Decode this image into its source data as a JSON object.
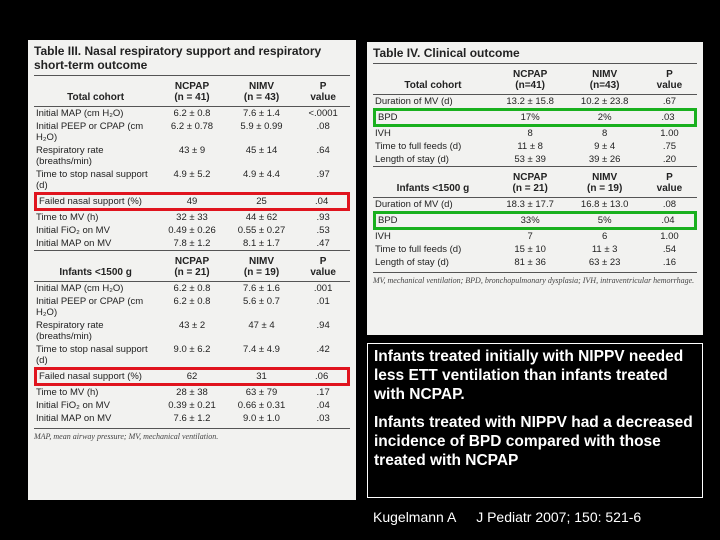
{
  "table3": {
    "title": "Table III. Nasal respiratory support and respiratory short-term outcome",
    "sections": [
      {
        "header": [
          [
            "Total cohort"
          ],
          [
            "NCPAP",
            "(n = 41)"
          ],
          [
            "NIMV",
            "(n = 43)"
          ],
          [
            "P",
            "value"
          ]
        ],
        "rows": [
          [
            "Initial MAP (cm H₂O)",
            "6.2 ± 0.8",
            "7.6 ± 1.4",
            "<.0001"
          ],
          [
            "Initial PEEP or CPAP (cm H₂O)",
            "6.2 ± 0.78",
            "5.9 ± 0.99",
            ".08"
          ],
          [
            "Respiratory rate (breaths/min)",
            "43 ± 9",
            "45 ± 14",
            ".64"
          ],
          [
            "Time to stop nasal support (d)",
            "4.9 ± 5.2",
            "4.9 ± 4.4",
            ".97"
          ],
          [
            "Failed nasal support (%)",
            "49",
            "25",
            ".04"
          ],
          [
            "Time to MV (h)",
            "32 ± 33",
            "44 ± 62",
            ".93"
          ],
          [
            "Initial FiO₂ on MV",
            "0.49 ± 0.26",
            "0.55 ± 0.27",
            ".53"
          ],
          [
            "Initial MAP on MV",
            "7.8 ± 1.2",
            "8.1 ± 1.7",
            ".47"
          ]
        ]
      },
      {
        "header": [
          [
            "Infants <1500 g"
          ],
          [
            "NCPAP",
            "(n = 21)"
          ],
          [
            "NIMV",
            "(n = 19)"
          ],
          [
            "P",
            "value"
          ]
        ],
        "rows": [
          [
            "Initial MAP (cm H₂O)",
            "6.2 ± 0.8",
            "7.6 ± 1.6",
            ".001"
          ],
          [
            "Initial PEEP or CPAP (cm H₂O)",
            "6.2 ± 0.8",
            "5.6 ± 0.7",
            ".01"
          ],
          [
            "Respiratory rate (breaths/min)",
            "43 ± 2",
            "47 ± 4",
            ".94"
          ],
          [
            "Time to stop nasal support (d)",
            "9.0 ± 6.2",
            "7.4 ± 4.9",
            ".42"
          ],
          [
            "Failed nasal support (%)",
            "62",
            "31",
            ".06"
          ],
          [
            "Time to MV (h)",
            "28 ± 38",
            "63 ± 79",
            ".17"
          ],
          [
            "Initial FiO₂ on MV",
            "0.39 ± 0.21",
            "0.66 ± 0.31",
            ".04"
          ],
          [
            "Initial MAP on MV",
            "7.6 ± 1.2",
            "9.0 ± 1.0",
            ".03"
          ]
        ]
      }
    ],
    "footnote": "MAP, mean airway pressure; MV, mechanical ventilation."
  },
  "table4": {
    "title": "Table IV. Clinical outcome",
    "sections": [
      {
        "header": [
          [
            "Total cohort"
          ],
          [
            "NCPAP",
            "(n=41)"
          ],
          [
            "NIMV",
            "(n=43)"
          ],
          [
            "P",
            "value"
          ]
        ],
        "rows": [
          [
            "Duration of MV (d)",
            "13.2 ± 15.8",
            "10.2 ± 23.8",
            ".67"
          ],
          [
            "BPD",
            "17%",
            "2%",
            ".03"
          ],
          [
            "IVH",
            "8",
            "8",
            "1.00"
          ],
          [
            "Time to full feeds (d)",
            "11 ± 8",
            "9 ± 4",
            ".75"
          ],
          [
            "Length of stay (d)",
            "53 ± 39",
            "39 ± 26",
            ".20"
          ]
        ]
      },
      {
        "header": [
          [
            "Infants <1500 g"
          ],
          [
            "NCPAP",
            "(n = 21)"
          ],
          [
            "NIMV",
            "(n = 19)"
          ],
          [
            "P",
            "value"
          ]
        ],
        "rows": [
          [
            "Duration of MV (d)",
            "18.3 ± 17.7",
            "16.8 ± 13.0",
            ".08"
          ],
          [
            "BPD",
            "33%",
            "5%",
            ".04"
          ],
          [
            "IVH",
            "7",
            "6",
            "1.00"
          ],
          [
            "Time to full feeds (d)",
            "15 ± 10",
            "11 ± 3",
            ".54"
          ],
          [
            "Length of stay (d)",
            "81 ± 36",
            "63 ± 23",
            ".16"
          ]
        ]
      }
    ],
    "footnote": "MV, mechanical ventilation; BPD, bronchopulmonary dysplasia; IVH, intraventricular hemorrhage."
  },
  "summary": {
    "paragraphs": [
      "Infants treated initially with NIPPV needed less ETT ventilation than infants treated with NCPAP.",
      "Infants treated with NIPPV had a decreased incidence of BPD compared with those treated with NCPAP"
    ]
  },
  "footer": {
    "author": "Kugelmann A",
    "citation": "J Pediatr 2007; 150: 521-6"
  }
}
